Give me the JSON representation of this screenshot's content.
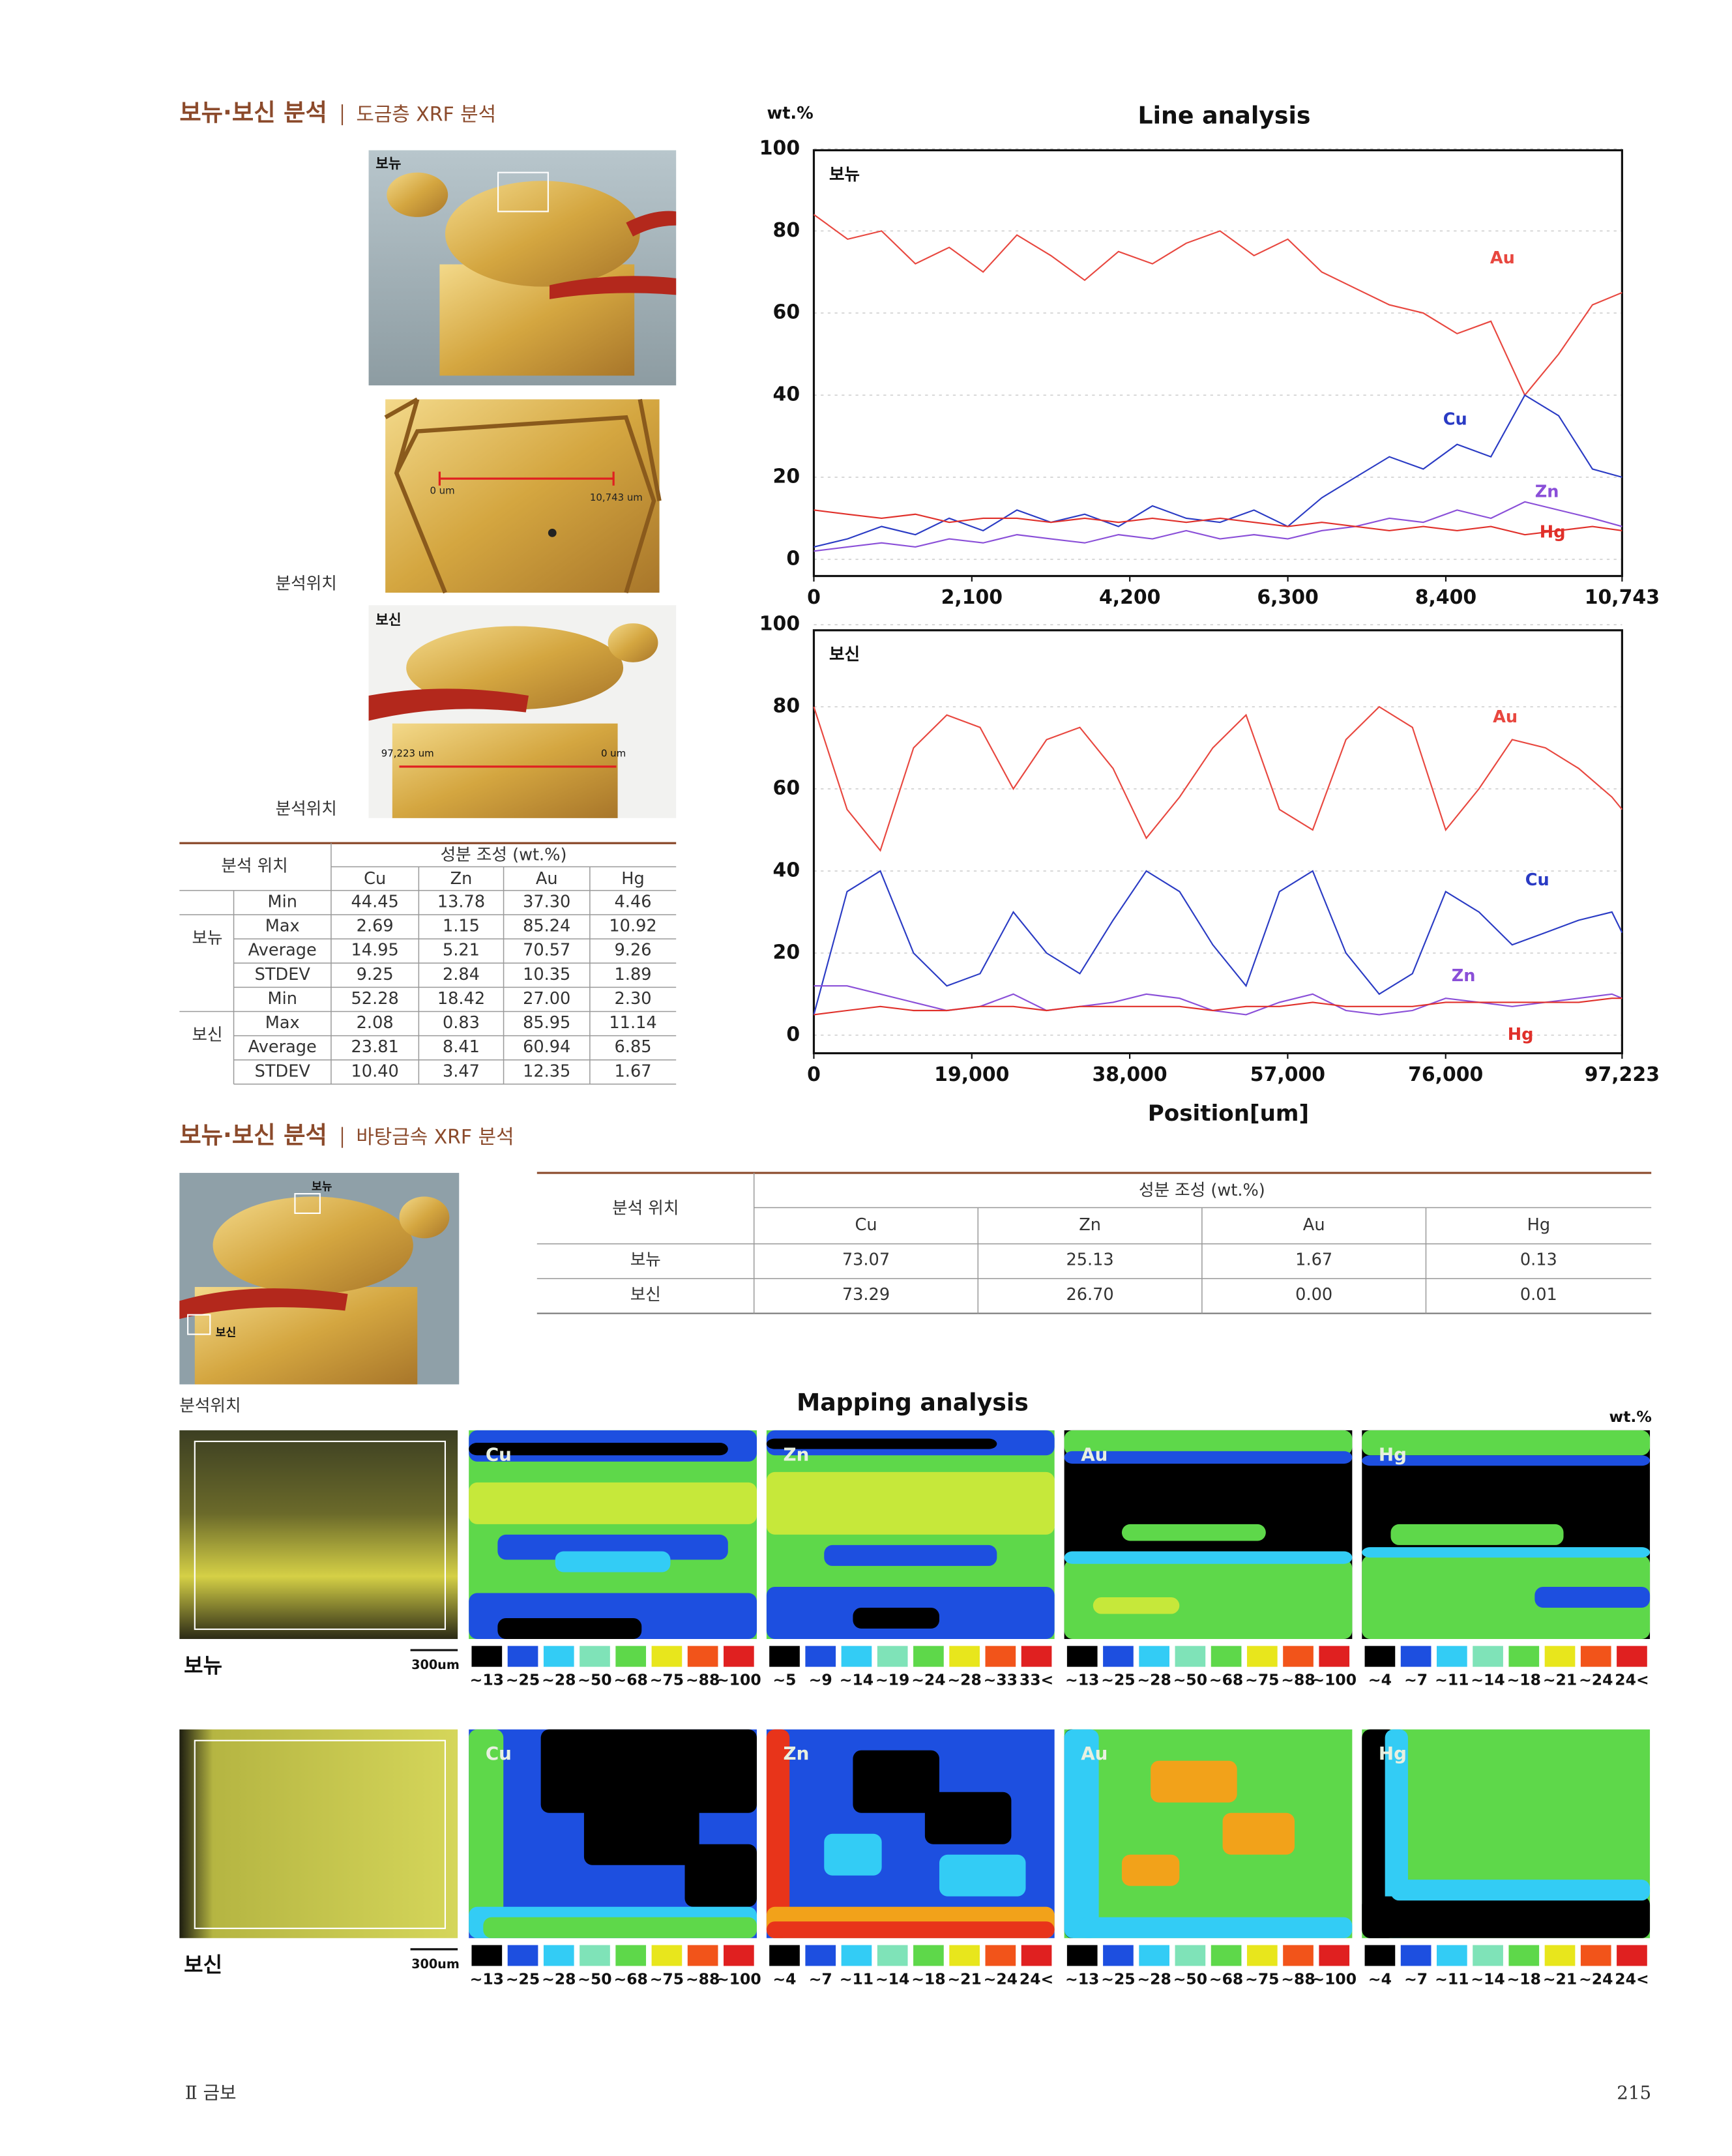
{
  "section1": {
    "title": "보뉴·보신 분석",
    "subtitle": "도금층 XRF 분석"
  },
  "photos": {
    "bonyu_label": "보뉴",
    "scale_start": "0 um",
    "scale_end": "10,743 um",
    "caption_1": "분석위치",
    "bosin_label": "보신",
    "bosin_scale_start": "97,223 um",
    "bosin_scale_end": "0 um",
    "caption_2": "분석위치"
  },
  "table1": {
    "location_header": "분석 위치",
    "composition_header": "성분 조성 (wt.%)",
    "columns": [
      "Cu",
      "Zn",
      "Au",
      "Hg"
    ],
    "groups": [
      {
        "name": "보뉴",
        "rows": [
          {
            "stat": "Min",
            "values": [
              "44.45",
              "13.78",
              "37.30",
              "4.46"
            ]
          },
          {
            "stat": "Max",
            "values": [
              "2.69",
              "1.15",
              "85.24",
              "10.92"
            ]
          },
          {
            "stat": "Average",
            "values": [
              "14.95",
              "5.21",
              "70.57",
              "9.26"
            ]
          },
          {
            "stat": "STDEV",
            "values": [
              "9.25",
              "2.84",
              "10.35",
              "1.89"
            ]
          }
        ]
      },
      {
        "name": "보신",
        "rows": [
          {
            "stat": "Min",
            "values": [
              "52.28",
              "18.42",
              "27.00",
              "2.30"
            ]
          },
          {
            "stat": "Max",
            "values": [
              "2.08",
              "0.83",
              "85.95",
              "11.14"
            ]
          },
          {
            "stat": "Average",
            "values": [
              "23.81",
              "8.41",
              "60.94",
              "6.85"
            ]
          },
          {
            "stat": "STDEV",
            "values": [
              "10.40",
              "3.47",
              "12.35",
              "1.67"
            ]
          }
        ]
      }
    ]
  },
  "chart_data": [
    {
      "type": "line",
      "title": "Line analysis",
      "y_label": "wt.%",
      "panel_label": "보뉴",
      "grid": true,
      "x": [
        0,
        450,
        900,
        1350,
        1800,
        2250,
        2700,
        3150,
        3600,
        4050,
        4500,
        4950,
        5400,
        5850,
        6300,
        6750,
        7200,
        7650,
        8100,
        8550,
        9000,
        9450,
        9900,
        10350,
        10743
      ],
      "xlim": [
        0,
        10743
      ],
      "xticks": [
        0,
        {
          "value": 2100,
          "label": "2,100"
        },
        {
          "value": 4200,
          "label": "4,200"
        },
        {
          "value": 6300,
          "label": "6,300"
        },
        {
          "value": 8400,
          "label": "8,400"
        },
        {
          "value": 10743,
          "label": "10,743"
        }
      ],
      "ylim": [
        0,
        100
      ],
      "yticks": [
        0,
        20,
        40,
        60,
        80,
        100
      ],
      "series": [
        {
          "name": "Au",
          "color": "#e8473f",
          "values": [
            84,
            78,
            80,
            72,
            76,
            70,
            79,
            74,
            68,
            75,
            72,
            77,
            80,
            74,
            78,
            70,
            66,
            62,
            60,
            55,
            58,
            40,
            50,
            62,
            65
          ]
        },
        {
          "name": "Cu",
          "color": "#2a3bc4",
          "values": [
            3,
            5,
            8,
            6,
            10,
            7,
            12,
            9,
            11,
            8,
            13,
            10,
            9,
            12,
            8,
            15,
            20,
            25,
            22,
            28,
            25,
            40,
            35,
            22,
            20
          ]
        },
        {
          "name": "Zn",
          "color": "#8a4fd8",
          "values": [
            2,
            3,
            4,
            3,
            5,
            4,
            6,
            5,
            4,
            6,
            5,
            7,
            5,
            6,
            5,
            7,
            8,
            10,
            9,
            12,
            10,
            14,
            12,
            10,
            8
          ]
        },
        {
          "name": "Hg",
          "color": "#e0302a",
          "values": [
            12,
            11,
            10,
            11,
            9,
            10,
            10,
            9,
            10,
            9,
            10,
            9,
            10,
            9,
            8,
            9,
            8,
            7,
            8,
            7,
            8,
            6,
            7,
            8,
            7
          ]
        }
      ]
    },
    {
      "type": "line",
      "panel_label": "보신",
      "x_label": "Position[um]",
      "grid": true,
      "x": [
        0,
        4000,
        8000,
        12000,
        16000,
        20000,
        24000,
        28000,
        32000,
        36000,
        40000,
        44000,
        48000,
        52000,
        56000,
        60000,
        64000,
        68000,
        72000,
        76000,
        80000,
        84000,
        88000,
        92000,
        96000,
        97223
      ],
      "xlim": [
        0,
        97223
      ],
      "xticks": [
        0,
        {
          "value": 19000,
          "label": "19,000"
        },
        {
          "value": 38000,
          "label": "38,000"
        },
        {
          "value": 57000,
          "label": "57,000"
        },
        {
          "value": 76000,
          "label": "76,000"
        },
        {
          "value": 97223,
          "label": "97,223"
        }
      ],
      "ylim": [
        0,
        100
      ],
      "yticks": [
        0,
        20,
        40,
        60,
        80,
        100
      ],
      "series": [
        {
          "name": "Au",
          "color": "#e8473f",
          "values": [
            80,
            55,
            45,
            70,
            78,
            75,
            60,
            72,
            75,
            65,
            48,
            58,
            70,
            78,
            55,
            50,
            72,
            80,
            75,
            50,
            60,
            72,
            70,
            65,
            58,
            55
          ]
        },
        {
          "name": "Cu",
          "color": "#2a3bc4",
          "values": [
            5,
            35,
            40,
            20,
            12,
            15,
            30,
            20,
            15,
            28,
            40,
            35,
            22,
            12,
            35,
            40,
            20,
            10,
            15,
            35,
            30,
            22,
            25,
            28,
            30,
            25
          ]
        },
        {
          "name": "Zn",
          "color": "#8a4fd8",
          "values": [
            12,
            12,
            10,
            8,
            6,
            7,
            10,
            6,
            7,
            8,
            10,
            9,
            6,
            5,
            8,
            10,
            6,
            5,
            6,
            9,
            8,
            7,
            8,
            9,
            10,
            9
          ]
        },
        {
          "name": "Hg",
          "color": "#e0302a",
          "values": [
            5,
            6,
            7,
            6,
            6,
            7,
            7,
            6,
            7,
            7,
            7,
            7,
            6,
            7,
            7,
            8,
            7,
            7,
            7,
            8,
            8,
            8,
            8,
            8,
            9,
            9
          ]
        }
      ]
    }
  ],
  "section2": {
    "title": "보뉴·보신 분석",
    "subtitle": "바탕금속 XRF 분석"
  },
  "photo2": {
    "bonyu_label": "보뉴",
    "bosin_label": "보신",
    "caption": "분석위치"
  },
  "table2": {
    "location_header": "분석 위치",
    "composition_header": "성분 조성 (wt.%)",
    "columns": [
      "Cu",
      "Zn",
      "Au",
      "Hg"
    ],
    "rows": [
      {
        "name": "보뉴",
        "values": [
          "73.07",
          "25.13",
          "1.67",
          "0.13"
        ]
      },
      {
        "name": "보신",
        "values": [
          "73.29",
          "26.70",
          "0.00",
          "0.01"
        ]
      }
    ]
  },
  "mapping": {
    "title": "Mapping analysis",
    "unit": "wt.%",
    "rows": [
      {
        "name": "보뉴",
        "scale": "300um",
        "panels": [
          {
            "element": "Cu",
            "legend": [
              "~13",
              "~25",
              "~28",
              "~50",
              "~68",
              "~75",
              "~88",
              "~100"
            ]
          },
          {
            "element": "Zn",
            "legend": [
              "~5",
              "~9",
              "~14",
              "~19",
              "~24",
              "~28",
              "~33",
              "33<"
            ]
          },
          {
            "element": "Au",
            "legend": [
              "~13",
              "~25",
              "~28",
              "~50",
              "~68",
              "~75",
              "~88",
              "~100"
            ]
          },
          {
            "element": "Hg",
            "legend": [
              "~4",
              "~7",
              "~11",
              "~14",
              "~18",
              "~21",
              "~24",
              "24<"
            ]
          }
        ]
      },
      {
        "name": "보신",
        "scale": "300um",
        "panels": [
          {
            "element": "Cu",
            "legend": [
              "~13",
              "~25",
              "~28",
              "~50",
              "~68",
              "~75",
              "~88",
              "~100"
            ]
          },
          {
            "element": "Zn",
            "legend": [
              "~4",
              "~7",
              "~11",
              "~14",
              "~18",
              "~21",
              "~24",
              "24<"
            ]
          },
          {
            "element": "Au",
            "legend": [
              "~13",
              "~25",
              "~28",
              "~50",
              "~68",
              "~75",
              "~88",
              "~100"
            ]
          },
          {
            "element": "Hg",
            "legend": [
              "~4",
              "~7",
              "~11",
              "~14",
              "~18",
              "~21",
              "~24",
              "24<"
            ]
          }
        ]
      }
    ]
  },
  "footer": {
    "chapter": "Ⅱ 금보",
    "page": "215"
  }
}
